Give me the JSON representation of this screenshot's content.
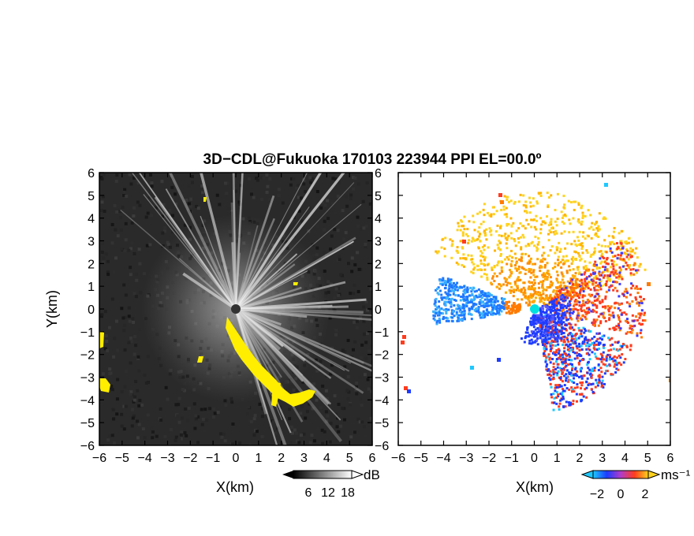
{
  "title": "3D−CDL@Fukuoka 170103 223944 PPI EL=00.0º",
  "chart_data": [
    {
      "type": "heatmap",
      "panel": "reflectivity",
      "xlabel": "X(km)",
      "ylabel": "Y(km)",
      "xlim": [
        -6,
        6
      ],
      "ylim": [
        -6,
        6
      ],
      "xticks": [
        "−6",
        "−5",
        "−4",
        "−3",
        "−2",
        "−1",
        "0",
        "1",
        "2",
        "3",
        "4",
        "5",
        "6"
      ],
      "yticks": [
        "6",
        "5",
        "4",
        "3",
        "2",
        "1",
        "0",
        "−1",
        "−2",
        "−3",
        "−4",
        "−5",
        "−6"
      ],
      "background_color": "#2a2a2a",
      "colorbar": {
        "unit": "dB",
        "ticks": [
          "6",
          "12",
          "18"
        ],
        "colors": [
          "#000000",
          "#ffffff"
        ]
      },
      "highlight_color": "#ffee00"
    },
    {
      "type": "heatmap",
      "panel": "doppler-velocity",
      "xlabel": "X(km)",
      "xlim": [
        -6,
        6
      ],
      "ylim": [
        -6,
        6
      ],
      "xticks": [
        "−6",
        "−5",
        "−4",
        "−3",
        "−2",
        "−1",
        "0",
        "1",
        "2",
        "3",
        "4",
        "5",
        "6"
      ],
      "yticks": [
        "6",
        "5",
        "4",
        "3",
        "2",
        "1",
        "0",
        "−1",
        "−2",
        "−3",
        "−4",
        "−5",
        "−6"
      ],
      "colorbar": {
        "unit": "ms⁻¹",
        "ticks": [
          "−2",
          "0",
          "2"
        ],
        "colors": [
          "#1ec8ff",
          "#1e3cff",
          "#b03cc8",
          "#ff3c1e",
          "#ffd21e"
        ]
      },
      "center_marker_color": "#00e0e0"
    }
  ]
}
